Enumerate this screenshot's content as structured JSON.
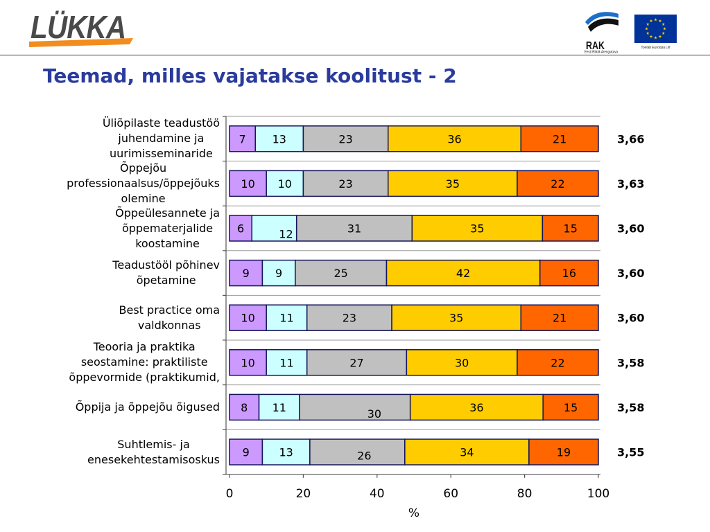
{
  "header": {
    "logo_text": "LÜKKA",
    "rak_text": "RAK",
    "rak_subtext": "Eesti Riiklik Arengukava",
    "eu_caption": "Toetab Euroopa Liit"
  },
  "slide": {
    "title": "Teemad, milles vajatakse koolitust - 2"
  },
  "colors": {
    "title": "#2a3b9d",
    "logo_letters": "#4a4a4a",
    "logo_swoosh": "#f28c1e",
    "rak_blue": "#1e6fc8",
    "rak_black": "#111111",
    "eu_blue": "#003399",
    "eu_star": "#ffcc00",
    "bar_border": "#14145a",
    "gridline": "#9a9a9a",
    "axis": "#555555"
  },
  "chart_data": {
    "type": "bar",
    "orientation": "horizontal",
    "stacked": true,
    "xlabel": "%",
    "ylabel": "",
    "xlim": [
      0,
      100
    ],
    "x_ticks": [
      0,
      20,
      40,
      60,
      80,
      100
    ],
    "grid": true,
    "legend": "none",
    "categories": [
      "Üliõpilaste teadustöö\njuhendamine ja\nuurimisseminaride",
      "Õppejõu\nprofessionaalsus/õppejõuks\nolemine",
      "Õppeülesannete ja\nõppematerjalide\nkoostamine",
      "Teadustööl põhinev\nõpetamine",
      "Best practice oma\nvaldkonnas",
      "Teooria ja praktika\nseostamine: praktiliste\nõppevormide (praktikumid,",
      "Õppija ja õppejõu õigused",
      "Suhtlemis- ja\nenesekehtestamisoskus"
    ],
    "series": [
      {
        "color": "#cc99ff",
        "values": [
          7,
          10,
          6,
          9,
          10,
          10,
          8,
          9
        ]
      },
      {
        "color": "#ccffff",
        "values": [
          13,
          10,
          12,
          9,
          11,
          11,
          11,
          13
        ]
      },
      {
        "color": "#c0c0c0",
        "values": [
          23,
          23,
          31,
          25,
          23,
          27,
          30,
          26
        ]
      },
      {
        "color": "#ffcc00",
        "values": [
          36,
          35,
          35,
          42,
          35,
          30,
          36,
          34
        ]
      },
      {
        "color": "#ff6600",
        "values": [
          21,
          22,
          15,
          16,
          21,
          22,
          15,
          19
        ]
      }
    ],
    "averages": [
      "3,66",
      "3,63",
      "3,60",
      "3,60",
      "3,60",
      "3,58",
      "3,58",
      "3,55"
    ]
  }
}
